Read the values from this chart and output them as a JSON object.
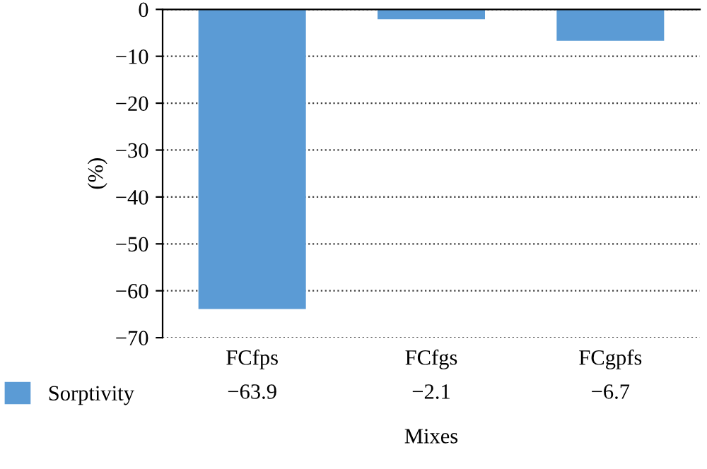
{
  "chart_data": {
    "type": "bar",
    "xlabel": "Mixes",
    "ylabel": "(%)",
    "categories": [
      "FCfps",
      "FCfgs",
      "FCgpfs"
    ],
    "series": [
      {
        "name": "Sorptivity",
        "color": "#5b9bd5",
        "values": [
          -63.9,
          -2.1,
          -6.7
        ]
      }
    ],
    "ylim": [
      -70,
      0
    ],
    "yticks": [
      -70,
      -60,
      -50,
      -40,
      -30,
      -20,
      -10,
      0
    ],
    "grid": "y",
    "line_style": "dotted",
    "legend": "bottom left",
    "data_labels": true
  }
}
